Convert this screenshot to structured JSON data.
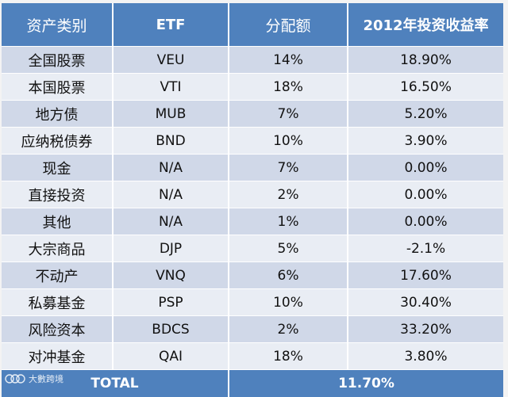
{
  "table": {
    "headers": [
      "资产类别",
      "ETF",
      "分配额",
      "2012年投资收益率"
    ],
    "rows": [
      {
        "category": "全国股票",
        "etf": "VEU",
        "allocation": "14%",
        "return": "18.90%"
      },
      {
        "category": "本国股票",
        "etf": "VTI",
        "allocation": "18%",
        "return": "16.50%"
      },
      {
        "category": "地方债",
        "etf": "MUB",
        "allocation": "7%",
        "return": "5.20%"
      },
      {
        "category": "应纳税债券",
        "etf": "BND",
        "allocation": "10%",
        "return": "3.90%"
      },
      {
        "category": "现金",
        "etf": "N/A",
        "allocation": "7%",
        "return": "0.00%"
      },
      {
        "category": "直接投资",
        "etf": "N/A",
        "allocation": "2%",
        "return": "0.00%"
      },
      {
        "category": "其他",
        "etf": "N/A",
        "allocation": "1%",
        "return": "0.00%"
      },
      {
        "category": "大宗商品",
        "etf": "DJP",
        "allocation": "5%",
        "return": "-2.1%"
      },
      {
        "category": "不动产",
        "etf": "VNQ",
        "allocation": "6%",
        "return": "17.60%"
      },
      {
        "category": "私募基金",
        "etf": "PSP",
        "allocation": "10%",
        "return": "30.40%"
      },
      {
        "category": "风险资本",
        "etf": "BDCS",
        "allocation": "2%",
        "return": "33.20%"
      },
      {
        "category": "对冲基金",
        "etf": "QAI",
        "allocation": "18%",
        "return": "3.80%"
      }
    ],
    "total": {
      "label": "TOTAL",
      "value": "11.70%"
    }
  },
  "watermark": {
    "text": "大數跨境",
    "logo_icon": "logo-icon"
  }
}
